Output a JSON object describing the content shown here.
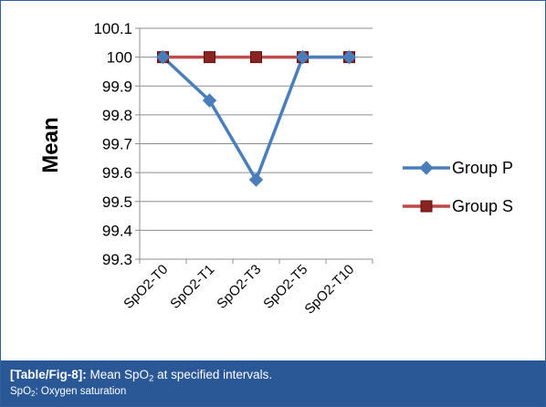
{
  "chart_data": {
    "type": "line",
    "title": "",
    "xlabel": "",
    "ylabel": "Mean",
    "categories": [
      "SpO2-T0",
      "SpO2-T1",
      "SpO2-T3",
      "SpO2-T5",
      "SpO2-T10"
    ],
    "ylim": [
      99.3,
      100.1
    ],
    "yticks": [
      99.3,
      99.4,
      99.5,
      99.6,
      99.7,
      99.8,
      99.9,
      100,
      100.1
    ],
    "grid": true,
    "legend_position": "right",
    "series": [
      {
        "name": "Group P",
        "values": [
          100,
          99.85,
          99.575,
          100,
          100
        ],
        "color": "#4a7ebb",
        "marker": "diamond"
      },
      {
        "name": "Group S",
        "values": [
          100,
          100,
          100,
          100,
          100
        ],
        "color": "#be4b48",
        "marker": "square"
      }
    ]
  },
  "caption": {
    "label": "[Table/Fig-8]:",
    "text_pre": "Mean SpO",
    "text_sub": "2",
    "text_post": "at specified intervals.",
    "note_pre": "SpO",
    "note_sub": "2",
    "note_post": ": Oxygen saturation"
  }
}
